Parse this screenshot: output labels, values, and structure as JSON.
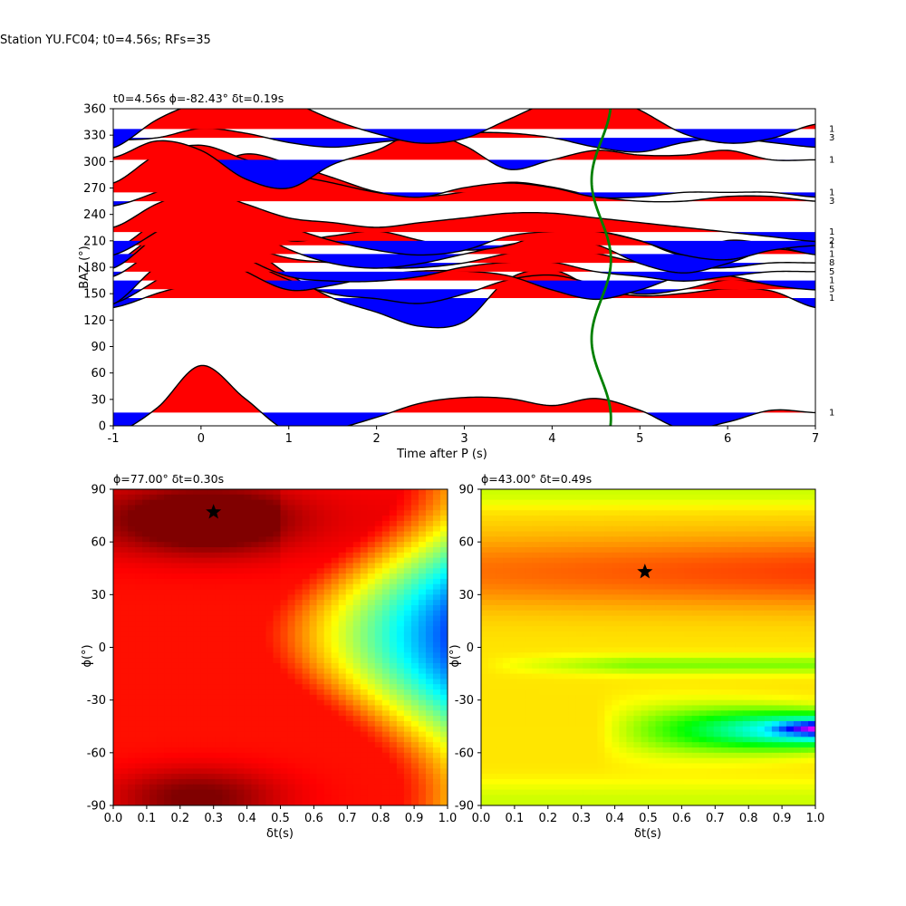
{
  "figure": {
    "title": "Station YU.FC04; t0=4.56s; RFs=35"
  },
  "chart_data": [
    {
      "type": "line",
      "panel": "receiver-function-traces",
      "title": "t0=4.56s ϕ=-82.43° δt=0.19s",
      "xlabel": "Time after P (s)",
      "ylabel": "BAZ (°)",
      "xlim": [
        -1,
        7
      ],
      "ylim": [
        0,
        360
      ],
      "xticks": [
        -1,
        0,
        1,
        2,
        3,
        4,
        5,
        6,
        7
      ],
      "yticks": [
        0,
        30,
        60,
        90,
        120,
        150,
        180,
        210,
        240,
        270,
        300,
        330,
        360
      ],
      "positive_fill": "#ff0000",
      "negative_fill": "#0000ff",
      "traces": [
        {
          "baz": 15,
          "count": "1",
          "amp": [
            -0.45,
            0.1,
            1.0,
            0.3,
            -0.4,
            -0.35,
            -0.1,
            0.2,
            0.32,
            0.3,
            0.15,
            0.3,
            0.05,
            -0.35,
            -0.2,
            0.05,
            0.0
          ]
        },
        {
          "baz": 145,
          "count": "1",
          "amp": [
            -0.2,
            0.1,
            0.4,
            1.0,
            0.5,
            0.0,
            -0.3,
            -0.6,
            -0.5,
            0.4,
            0.6,
            0.2,
            0.05,
            0.1,
            0.2,
            0.15,
            -0.2
          ]
        },
        {
          "baz": 155,
          "count": "5",
          "amp": [
            -0.3,
            0.2,
            0.8,
            0.6,
            0.2,
            -0.1,
            -0.2,
            -0.3,
            -0.1,
            0.2,
            0.3,
            0.1,
            -0.1,
            0.0,
            0.2,
            0.1,
            0.0
          ]
        },
        {
          "baz": 165,
          "count": "1",
          "amp": [
            -0.5,
            0.3,
            0.7,
            0.2,
            -0.2,
            -0.1,
            0.1,
            0.2,
            0.2,
            0.1,
            -0.2,
            -0.4,
            -0.2,
            0.1,
            0.1,
            -0.1,
            -0.2
          ]
        },
        {
          "baz": 175,
          "count": "5",
          "amp": [
            -0.1,
            0.5,
            0.9,
            0.3,
            -0.1,
            -0.2,
            -0.2,
            -0.1,
            0.1,
            0.2,
            0.2,
            0.0,
            -0.1,
            -0.2,
            -0.1,
            0.0,
            0.0
          ]
        },
        {
          "baz": 185,
          "count": "8",
          "amp": [
            0.0,
            0.6,
            0.9,
            0.4,
            0.1,
            0.0,
            -0.1,
            -0.1,
            0.0,
            0.2,
            0.3,
            0.2,
            0.0,
            -0.1,
            -0.1,
            0.0,
            0.0
          ]
        },
        {
          "baz": 195,
          "count": "1",
          "amp": [
            -0.3,
            0.4,
            1.0,
            0.6,
            0.1,
            -0.2,
            -0.3,
            -0.2,
            0.0,
            0.2,
            0.3,
            0.2,
            -0.2,
            -0.4,
            -0.2,
            0.1,
            0.0
          ]
        },
        {
          "baz": 205,
          "count": "1",
          "amp": [
            -0.1,
            0.5,
            0.9,
            0.5,
            0.1,
            0.2,
            0.3,
            0.1,
            -0.1,
            0.0,
            0.3,
            0.3,
            0.1,
            -0.2,
            0.1,
            0.0,
            -0.2
          ]
        },
        {
          "baz": 210,
          "count": "2",
          "amp": [
            -0.3,
            0.2,
            0.8,
            0.7,
            0.3,
            0.0,
            -0.2,
            -0.3,
            -0.2,
            0.1,
            0.2,
            0.2,
            0.0,
            -0.3,
            -0.4,
            -0.2,
            -0.1
          ]
        },
        {
          "baz": 220,
          "count": "1",
          "amp": [
            0.1,
            0.6,
            0.9,
            0.6,
            0.3,
            0.2,
            0.1,
            0.2,
            0.3,
            0.4,
            0.4,
            0.3,
            0.2,
            0.1,
            0.0,
            -0.1,
            -0.2
          ]
        },
        {
          "baz": 255,
          "count": "3",
          "amp": [
            -0.1,
            0.2,
            0.6,
            1.0,
            0.8,
            0.5,
            0.2,
            0.1,
            0.2,
            0.4,
            0.3,
            0.1,
            0.0,
            0.0,
            0.1,
            0.1,
            0.0
          ]
        },
        {
          "baz": 265,
          "count": "1",
          "amp": [
            0.2,
            0.8,
            1.0,
            0.7,
            0.4,
            0.2,
            0.0,
            -0.1,
            0.1,
            0.2,
            0.1,
            -0.1,
            -0.1,
            0.0,
            0.0,
            0.0,
            -0.1
          ]
        },
        {
          "baz": 302,
          "count": "1",
          "amp": [
            0.05,
            0.4,
            0.2,
            -0.4,
            -0.6,
            -0.1,
            0.2,
            0.6,
            0.3,
            -0.2,
            0.0,
            0.2,
            0.1,
            0.1,
            0.2,
            0.0,
            0.0
          ]
        },
        {
          "baz": 327,
          "count": "3",
          "amp": [
            -0.05,
            0.0,
            0.2,
            0.1,
            -0.1,
            -0.2,
            -0.1,
            0.0,
            0.1,
            0.1,
            0.0,
            -0.2,
            -0.3,
            -0.1,
            0.0,
            -0.1,
            -0.2
          ]
        },
        {
          "baz": 337,
          "count": "1",
          "amp": [
            -0.4,
            0.2,
            0.6,
            0.9,
            0.6,
            0.2,
            -0.1,
            -0.3,
            -0.2,
            0.2,
            0.6,
            0.8,
            0.4,
            -0.1,
            -0.3,
            -0.2,
            0.1
          ]
        }
      ],
      "delay_curve": {
        "mean": 4.56,
        "amplitude": 0.11,
        "color": "#008000"
      }
    },
    {
      "type": "heatmap",
      "panel": "misfit-grid-left",
      "title": "ϕ=77.00° δt=0.30s",
      "xlabel": "δt(s)",
      "ylabel": "ϕ(°)",
      "xlim": [
        0.0,
        1.0
      ],
      "ylim": [
        -90,
        90
      ],
      "xticks": [
        "0.0",
        "0.1",
        "0.2",
        "0.3",
        "0.4",
        "0.5",
        "0.6",
        "0.7",
        "0.8",
        "0.9",
        "1.0"
      ],
      "yticks": [
        "-90",
        "-60",
        "-30",
        "0",
        "30",
        "60",
        "90"
      ],
      "best": {
        "dt": 0.3,
        "phi": 77.0
      },
      "colormap": "jet"
    },
    {
      "type": "heatmap",
      "panel": "misfit-grid-right",
      "title": "ϕ=43.00° δt=0.49s",
      "xlabel": "δt(s)",
      "ylabel": "ϕ(°)",
      "xlim": [
        0.0,
        1.0
      ],
      "ylim": [
        -90,
        90
      ],
      "xticks": [
        "0.0",
        "0.1",
        "0.2",
        "0.3",
        "0.4",
        "0.5",
        "0.6",
        "0.7",
        "0.8",
        "0.9",
        "1.0"
      ],
      "yticks": [
        "-90",
        "-60",
        "-30",
        "0",
        "30",
        "60",
        "90"
      ],
      "best": {
        "dt": 0.49,
        "phi": 43.0
      },
      "colormap": "hsv"
    }
  ]
}
